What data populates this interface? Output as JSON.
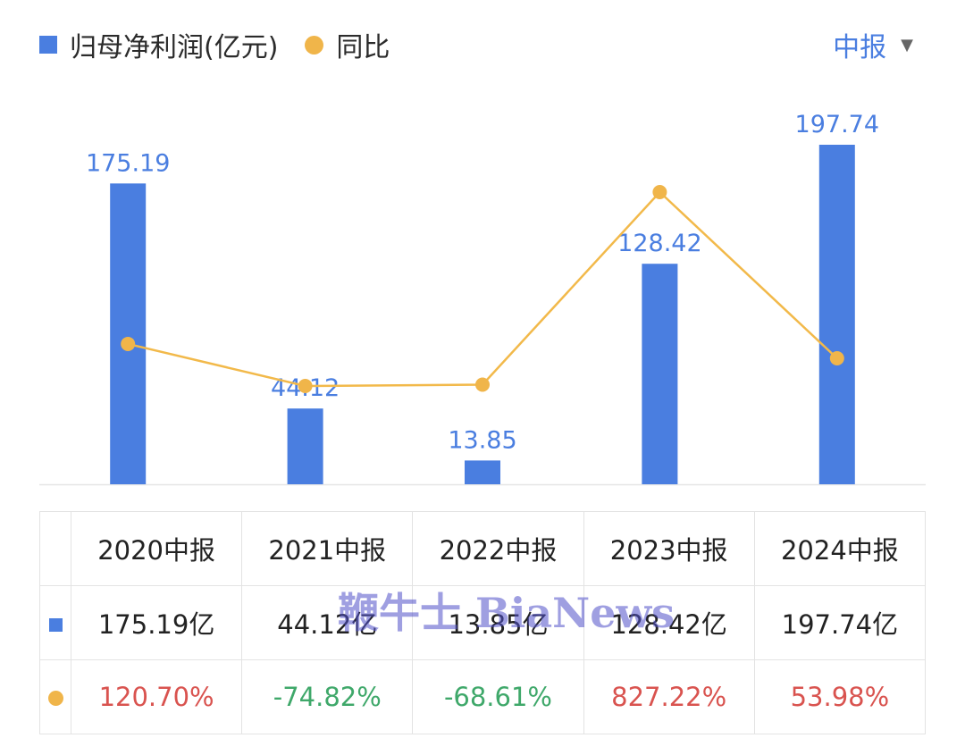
{
  "legend": {
    "bar_label": "归母净利润(亿元)",
    "line_label": "同比"
  },
  "period_select": {
    "value": "中报"
  },
  "colors": {
    "bar": "#4a7ee0",
    "line": "#f2b94a",
    "dot": "#f0b54a",
    "positive": "#d9534f",
    "negative": "#3fa86a",
    "label": "#4a7ee0",
    "axis": "#e6e6e6"
  },
  "chart_data": {
    "type": "bar",
    "categories": [
      "2020中报",
      "2021中报",
      "2022中报",
      "2023中报",
      "2024中报"
    ],
    "series": [
      {
        "name": "归母净利润(亿元)",
        "type": "bar",
        "values": [
          175.19,
          44.12,
          13.85,
          128.42,
          197.74
        ],
        "labels": [
          "175.19",
          "44.12",
          "13.85",
          "128.42",
          "197.74"
        ]
      },
      {
        "name": "同比",
        "type": "line",
        "values": [
          120.7,
          -74.82,
          -68.61,
          827.22,
          53.98
        ]
      }
    ],
    "legend": "top-left"
  },
  "table": {
    "headers": [
      "2020中报",
      "2021中报",
      "2022中报",
      "2023中报",
      "2024中报"
    ],
    "profit_row": [
      "175.19亿",
      "44.12亿",
      "13.85亿",
      "128.42亿",
      "197.74亿"
    ],
    "yoy_row": [
      "120.70%",
      "-74.82%",
      "-68.61%",
      "827.22%",
      "53.98%"
    ]
  },
  "watermark": "鞭牛士 BiaNews"
}
